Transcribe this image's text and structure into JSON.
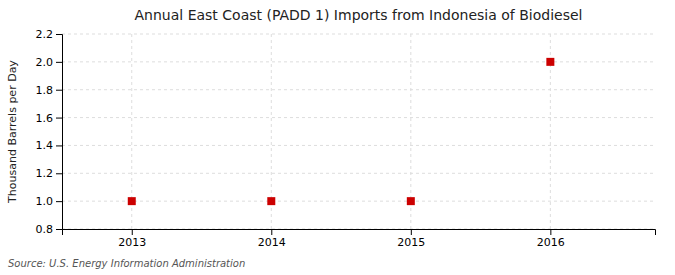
{
  "chart_data": {
    "type": "scatter",
    "title": "Annual East Coast (PADD 1) Imports from Indonesia of Biodiesel",
    "ylabel": "Thousand Barrels per Day",
    "x": [
      2013,
      2014,
      2015,
      2016
    ],
    "values": [
      1.0,
      1.0,
      1.0,
      2.0
    ],
    "color": "#cc0000",
    "marker": "square",
    "xlim": [
      2012.5,
      2016.75
    ],
    "xticks": [
      2013,
      2014,
      2015,
      2016
    ],
    "ylim": [
      0.8,
      2.2
    ],
    "yticks": [
      0.8,
      {
        "value": 1.0,
        "label": "1.0"
      },
      1.2,
      1.4,
      1.6,
      1.8,
      {
        "value": 2.0,
        "label": "2.0"
      },
      2.2
    ],
    "grid": true,
    "annotations": [
      "Source: U.S. Energy Information Administration"
    ]
  }
}
